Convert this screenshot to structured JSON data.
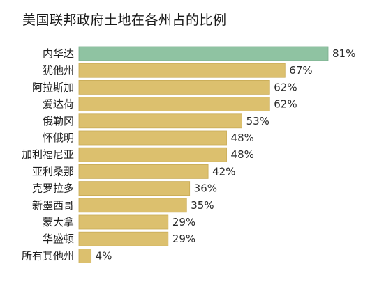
{
  "chart_data": {
    "type": "bar",
    "orientation": "horizontal",
    "title": "美国联邦政府土地在各州占的比例",
    "categories": [
      "内华达",
      "犹他州",
      "阿拉斯加",
      "爱达荷",
      "俄勒冈",
      "怀俄明",
      "加利福尼亚",
      "亚利桑那",
      "克罗拉多",
      "新墨西哥",
      "蒙大拿",
      "华盛顿",
      "所有其他州"
    ],
    "values": [
      81,
      67,
      62,
      62,
      53,
      48,
      48,
      42,
      36,
      35,
      29,
      29,
      4
    ],
    "value_labels": [
      "81%",
      "67%",
      "62%",
      "62%",
      "53%",
      "48%",
      "48%",
      "42%",
      "36%",
      "35%",
      "29%",
      "29%",
      "4%"
    ],
    "unit": "%",
    "xlim": [
      0,
      81
    ],
    "highlight_index": 0,
    "colors": {
      "highlight": "#8fc3a2",
      "bar": "#dcc06e",
      "bar_stroke": "#c9ab55",
      "highlight_stroke": "#78ad8c"
    },
    "grid": false,
    "legend": "none"
  }
}
